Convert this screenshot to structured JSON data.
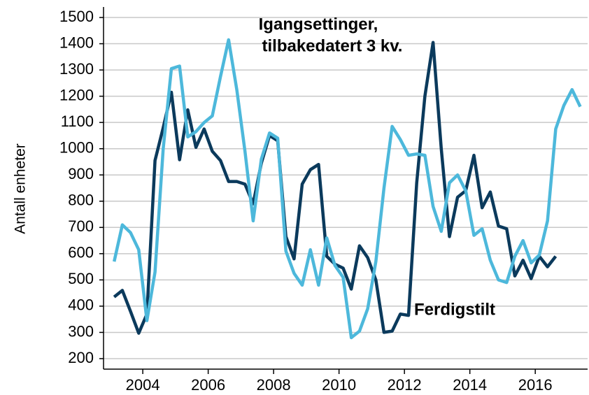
{
  "chart_data": {
    "type": "line",
    "y_label": "Antall enheter",
    "annotations": [
      "Igangsettinger,",
      "tilbakedatert 3 kv.",
      "Ferdigstilt"
    ],
    "x": [
      2003.125,
      2003.375,
      2003.625,
      2003.875,
      2004.125,
      2004.375,
      2004.625,
      2004.875,
      2005.125,
      2005.375,
      2005.625,
      2005.875,
      2006.125,
      2006.375,
      2006.625,
      2006.875,
      2007.125,
      2007.375,
      2007.625,
      2007.875,
      2008.125,
      2008.375,
      2008.625,
      2008.875,
      2009.125,
      2009.375,
      2009.625,
      2009.875,
      2010.125,
      2010.375,
      2010.625,
      2010.875,
      2011.125,
      2011.375,
      2011.625,
      2011.875,
      2012.125,
      2012.375,
      2012.625,
      2012.875,
      2013.125,
      2013.375,
      2013.625,
      2013.875,
      2014.125,
      2014.375,
      2014.625,
      2014.875,
      2015.125,
      2015.375,
      2015.625,
      2015.875,
      2016.125,
      2016.375,
      2016.625,
      2016.875,
      2017.125,
      2017.375
    ],
    "series": [
      {
        "name": "Ferdigstilt",
        "color": "#0b3a5c",
        "values": [
          435,
          460,
          380,
          297,
          370,
          955,
          1080,
          1215,
          958,
          1148,
          1005,
          1075,
          990,
          955,
          875,
          875,
          865,
          790,
          945,
          1050,
          1030,
          665,
          580,
          865,
          920,
          940,
          590,
          560,
          545,
          465,
          630,
          585,
          500,
          300,
          305,
          370,
          365,
          870,
          1200,
          1405,
          1000,
          665,
          815,
          840,
          975,
          775,
          835,
          705,
          695,
          515,
          575,
          505,
          590,
          550,
          590,
          null,
          null,
          null
        ]
      },
      {
        "name": "Igangsettinger, tilbakedatert 3 kv.",
        "color": "#4db8db",
        "values": [
          570,
          710,
          680,
          615,
          345,
          530,
          1000,
          1305,
          1315,
          1045,
          1065,
          1100,
          1125,
          1275,
          1415,
          1225,
          990,
          725,
          960,
          1060,
          1040,
          610,
          525,
          480,
          615,
          480,
          660,
          555,
          510,
          280,
          305,
          390,
          570,
          850,
          1085,
          1035,
          975,
          980,
          975,
          780,
          685,
          870,
          900,
          840,
          670,
          695,
          575,
          500,
          490,
          590,
          650,
          565,
          595,
          725,
          1075,
          1165,
          1225,
          1160
        ]
      }
    ],
    "xlim": [
      2002.8,
      2017.6
    ],
    "xticks": [
      2004,
      2006,
      2008,
      2010,
      2012,
      2014,
      2016
    ],
    "ylim": [
      160,
      1540
    ],
    "yticks": [
      200,
      300,
      400,
      500,
      600,
      700,
      800,
      900,
      1000,
      1100,
      1200,
      1300,
      1400,
      1500
    ],
    "grid": true
  }
}
